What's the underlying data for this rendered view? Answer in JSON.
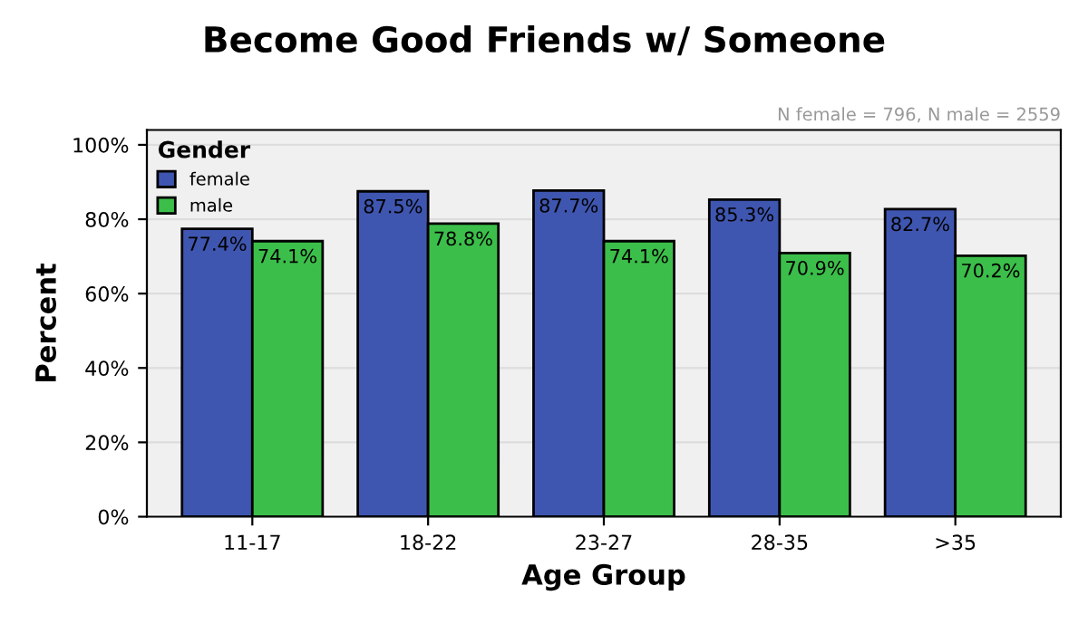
{
  "chart_data": {
    "type": "bar",
    "title": "Become Good Friends w/ Someone",
    "xlabel": "Age Group",
    "ylabel": "Percent",
    "legend_title": "Gender",
    "annotations": [
      "N female = 796, N male = 2559"
    ],
    "categories": [
      "11-17",
      "18-22",
      "23-27",
      "28-35",
      ">35"
    ],
    "series": [
      {
        "name": "female",
        "color": "#3f56b0",
        "values": [
          77.4,
          87.5,
          87.7,
          85.3,
          82.7
        ],
        "value_labels": [
          "77.4%",
          "87.5%",
          "87.7%",
          "85.3%",
          "82.7%"
        ]
      },
      {
        "name": "male",
        "color": "#3cbf4a",
        "values": [
          74.1,
          78.8,
          74.1,
          70.9,
          70.2
        ],
        "value_labels": [
          "74.1%",
          "78.8%",
          "74.1%",
          "70.9%",
          "70.2%"
        ]
      }
    ],
    "ylim": [
      0,
      104
    ],
    "yticks": [
      {
        "value": 0,
        "label": "0%"
      },
      {
        "value": 20,
        "label": "20%"
      },
      {
        "value": 40,
        "label": "40%"
      },
      {
        "value": 60,
        "label": "60%"
      },
      {
        "value": 80,
        "label": "80%"
      },
      {
        "value": 100,
        "label": "100%"
      }
    ],
    "grid": "y",
    "legend": "top left"
  }
}
